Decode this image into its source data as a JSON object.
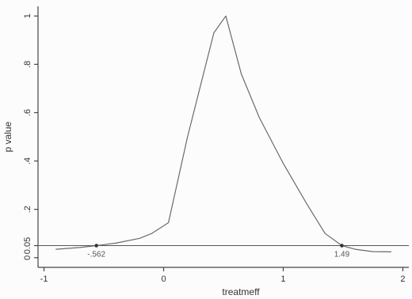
{
  "chart_data": {
    "type": "line",
    "title": "",
    "xlabel": "treatmeff",
    "ylabel": "p value",
    "xlim": [
      -1.05,
      2.05
    ],
    "ylim": [
      -0.04,
      1.04
    ],
    "x_ticks": [
      {
        "value": -1,
        "label": "-1"
      },
      {
        "value": 0,
        "label": "0"
      },
      {
        "value": 1,
        "label": "1"
      },
      {
        "value": 2,
        "label": "2"
      }
    ],
    "y_ticks": [
      {
        "value": 0,
        "label": "0"
      },
      {
        "value": 0.05,
        "label": "0.05"
      },
      {
        "value": 0.2,
        "label": ".2"
      },
      {
        "value": 0.4,
        "label": ".4"
      },
      {
        "value": 0.6,
        "label": ".6"
      },
      {
        "value": 0.8,
        "label": ".8"
      },
      {
        "value": 1,
        "label": "1"
      }
    ],
    "reference_line": {
      "y": 0.05
    },
    "series": [
      {
        "x": [
          -0.9,
          -0.7,
          -0.562,
          -0.4,
          -0.2,
          -0.1,
          0.04,
          0.2,
          0.42,
          0.52,
          0.65,
          0.8,
          1.0,
          1.2,
          1.35,
          1.49,
          1.6,
          1.75,
          1.9
        ],
        "y": [
          0.035,
          0.042,
          0.05,
          0.06,
          0.08,
          0.1,
          0.145,
          0.5,
          0.93,
          1.0,
          0.76,
          0.58,
          0.39,
          0.22,
          0.1,
          0.05,
          0.035,
          0.025,
          0.024
        ]
      }
    ],
    "ci_points": [
      {
        "x": -0.562,
        "y": 0.05,
        "label": "-.562"
      },
      {
        "x": 1.49,
        "y": 0.05,
        "label": "1.49"
      }
    ],
    "grid": false,
    "legend": "none"
  }
}
